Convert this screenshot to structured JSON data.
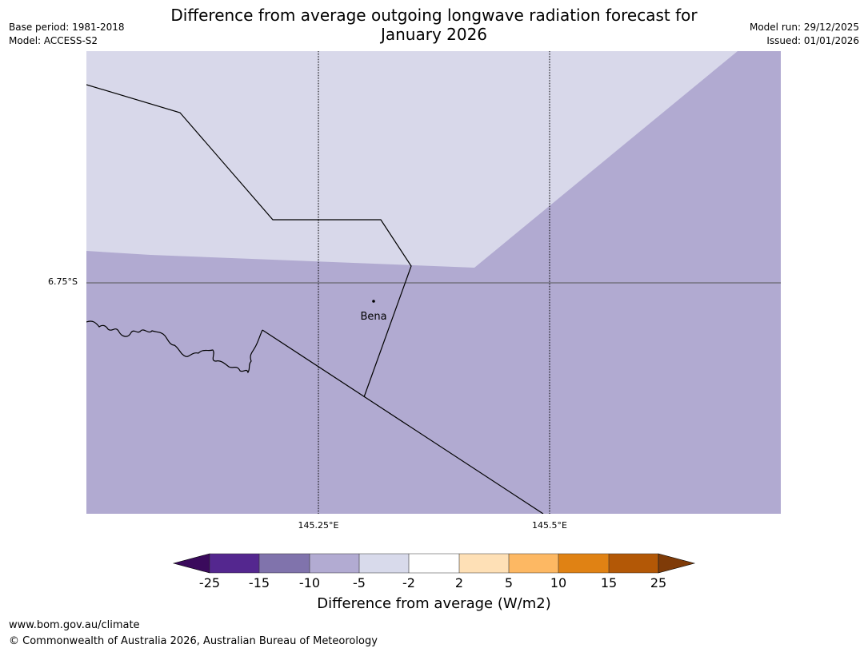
{
  "title_line1": "Difference from average outgoing longwave radiation forecast for",
  "title_line2": "January 2026",
  "meta_left": {
    "base_period": "Base period: 1981-2018",
    "model": "Model: ACCESS-S2"
  },
  "meta_right": {
    "model_run": "Model run: 29/12/2025",
    "issued": "Issued: 01/01/2026"
  },
  "map": {
    "latitude_label": "6.75°S",
    "longitude_labels": [
      "145.25°E",
      "145.5°E"
    ],
    "place_label": "Bena",
    "colors": {
      "light": "#d8d8ea",
      "medium": "#b1aad1"
    }
  },
  "colorbar": {
    "ticks": [
      "-25",
      "-15",
      "-10",
      "-5",
      "-2",
      "2",
      "5",
      "10",
      "15",
      "25"
    ],
    "colors": [
      "#3a0a5c",
      "#54278f",
      "#8073ac",
      "#b2abd2",
      "#d8daeb",
      "#ffffff",
      "#fee0b6",
      "#fdb863",
      "#e08214",
      "#b35806",
      "#7f3b08"
    ],
    "title": "Difference from average (W/m2)"
  },
  "footer": {
    "url": "www.bom.gov.au/climate",
    "copyright": "© Commonwealth of Australia 2026, Australian Bureau of Meteorology"
  }
}
